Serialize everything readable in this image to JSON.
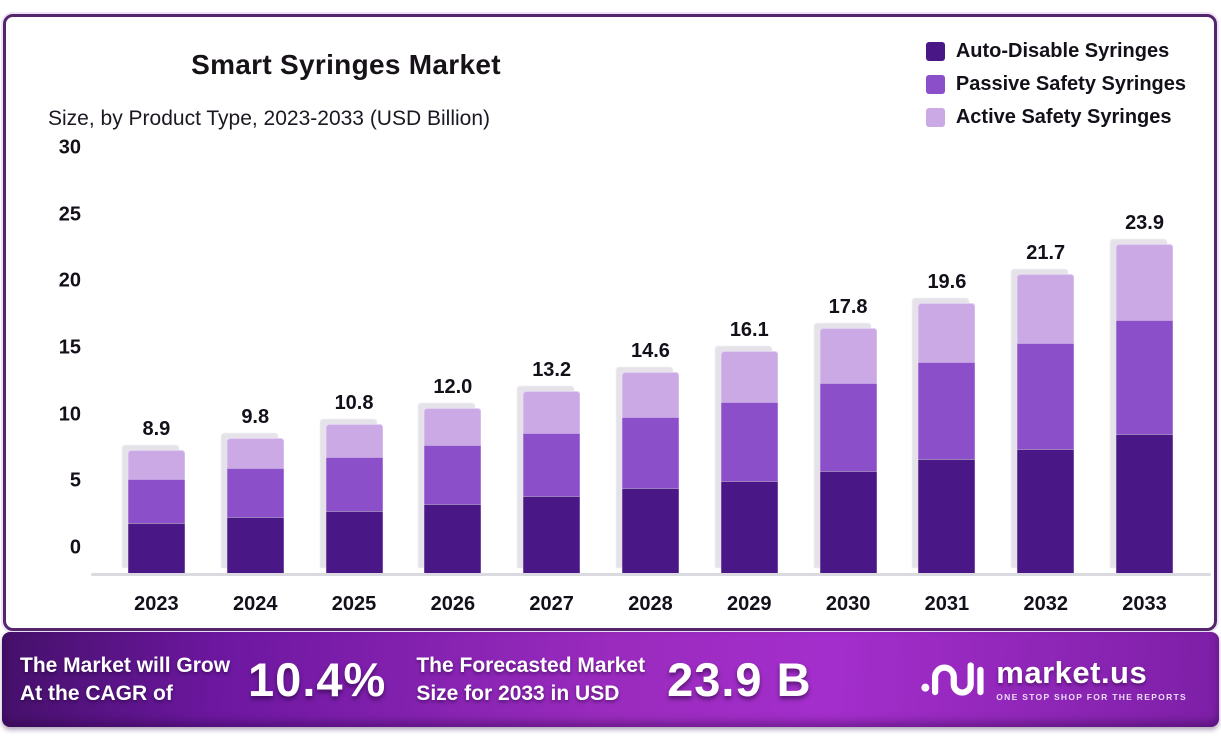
{
  "header": {
    "title": "Smart Syringes Market",
    "subtitle": "Size, by Product Type, 2023-2033 (USD Billion)"
  },
  "chart_data": {
    "type": "bar",
    "stacked": true,
    "title": "Smart Syringes Market Size, by Product Type, 2023-2033 (USD Billion)",
    "categories": [
      "2023",
      "2024",
      "2025",
      "2026",
      "2027",
      "2028",
      "2029",
      "2030",
      "2031",
      "2032",
      "2033"
    ],
    "series": [
      {
        "name": "Auto-Disable Syringes",
        "color": "#4A1787",
        "values": [
          3.6,
          4.1,
          4.5,
          5.0,
          5.6,
          6.2,
          6.7,
          7.4,
          8.3,
          9.0,
          10.1
        ]
      },
      {
        "name": "Passive Safety Syringes",
        "color": "#8B50C9",
        "values": [
          3.2,
          3.5,
          3.9,
          4.3,
          4.6,
          5.1,
          5.7,
          6.4,
          7.0,
          7.7,
          8.3
        ]
      },
      {
        "name": "Active Safety Syringes",
        "color": "#CBA9E5",
        "values": [
          2.1,
          2.2,
          2.4,
          2.7,
          3.0,
          3.3,
          3.7,
          4.0,
          4.3,
          5.0,
          5.5
        ]
      }
    ],
    "totals": [
      "8.9",
      "9.8",
      "10.8",
      "12.0",
      "13.2",
      "14.6",
      "16.1",
      "17.8",
      "19.6",
      "21.7",
      "23.9"
    ],
    "yticks": [
      0,
      5,
      10,
      15,
      20,
      25,
      30
    ],
    "ylim": [
      0,
      30
    ],
    "xlabel": "",
    "ylabel": "",
    "grid": false,
    "legend_position": "top-right"
  },
  "banner": {
    "cagr_label_line1": "The Market will Grow",
    "cagr_label_line2": "At the CAGR of",
    "cagr_value": "10.4%",
    "forecast_label_line1": "The Forecasted Market",
    "forecast_label_line2": "Size for 2033 in USD",
    "forecast_value": "23.9 B",
    "logo_text": "market.us",
    "logo_tagline": "ONE STOP SHOP FOR THE REPORTS"
  },
  "colors": {
    "panel_border": "#54276D",
    "baseline": "#DBDAE0",
    "banner_gradient_start": "#45106A",
    "banner_gradient_mid": "#9A2BBE",
    "banner_gradient_end": "#7D1FA6",
    "text_dark": "#14101a",
    "text_light": "#ffffff"
  }
}
